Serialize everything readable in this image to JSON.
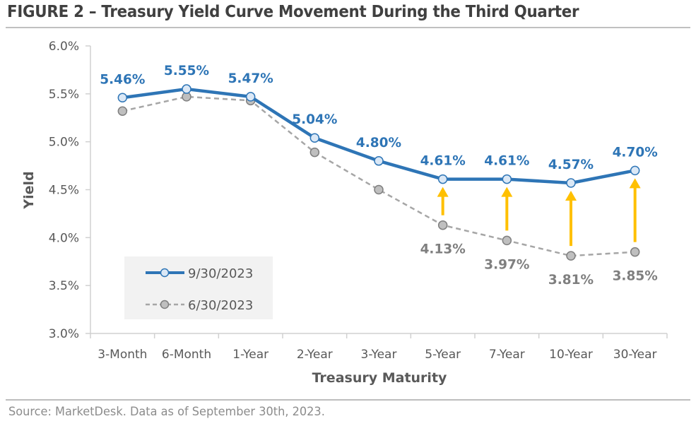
{
  "title": "FIGURE 2 – Treasury Yield Curve Movement During the Third Quarter",
  "footer": "Source: MarketDesk. Data as of September 30th, 2023.",
  "colors": {
    "series_current": "#2e75b6",
    "series_current_marker_fill": "#dbe8f6",
    "series_prior": "#a6a6a6",
    "series_prior_marker_fill": "#bfbfbf",
    "series_prior_marker_stroke": "#7f7f7f",
    "arrow": "#ffc000",
    "legend_bg": "#f2f2f2"
  },
  "chart_data": {
    "type": "line",
    "title": "Treasury Yield Curve Movement During the Third Quarter",
    "xlabel": "Treasury Maturity",
    "ylabel": "Yield",
    "categories": [
      "3-Month",
      "6-Month",
      "1-Year",
      "2-Year",
      "3-Year",
      "5-Year",
      "7-Year",
      "10-Year",
      "30-Year"
    ],
    "ylim": [
      3.0,
      6.0
    ],
    "yticks": [
      3.0,
      3.5,
      4.0,
      4.5,
      5.0,
      5.5,
      6.0
    ],
    "ytick_labels": [
      "3.0%",
      "3.5%",
      "4.0%",
      "4.5%",
      "5.0%",
      "5.5%",
      "6.0%"
    ],
    "grid": false,
    "legend_position": "bottom-left",
    "series": [
      {
        "name": "9/30/2023",
        "style": "solid",
        "values": [
          5.46,
          5.55,
          5.47,
          5.04,
          4.8,
          4.61,
          4.61,
          4.57,
          4.7
        ],
        "data_labels": [
          "5.46%",
          "5.55%",
          "5.47%",
          "5.04%",
          "4.80%",
          "4.61%",
          "4.61%",
          "4.57%",
          "4.70%"
        ]
      },
      {
        "name": "6/30/2023",
        "style": "dashed",
        "values": [
          5.32,
          5.47,
          5.43,
          4.89,
          4.5,
          4.13,
          3.97,
          3.81,
          3.85
        ],
        "data_labels": [
          null,
          null,
          null,
          null,
          null,
          "4.13%",
          "3.97%",
          "3.81%",
          "3.85%"
        ]
      }
    ],
    "annotations": [
      {
        "type": "up-arrow",
        "category": "5-Year",
        "from": 4.13,
        "to": 4.61
      },
      {
        "type": "up-arrow",
        "category": "7-Year",
        "from": 3.97,
        "to": 4.61
      },
      {
        "type": "up-arrow",
        "category": "10-Year",
        "from": 3.81,
        "to": 4.57
      },
      {
        "type": "up-arrow",
        "category": "30-Year",
        "from": 3.85,
        "to": 4.7
      }
    ]
  }
}
